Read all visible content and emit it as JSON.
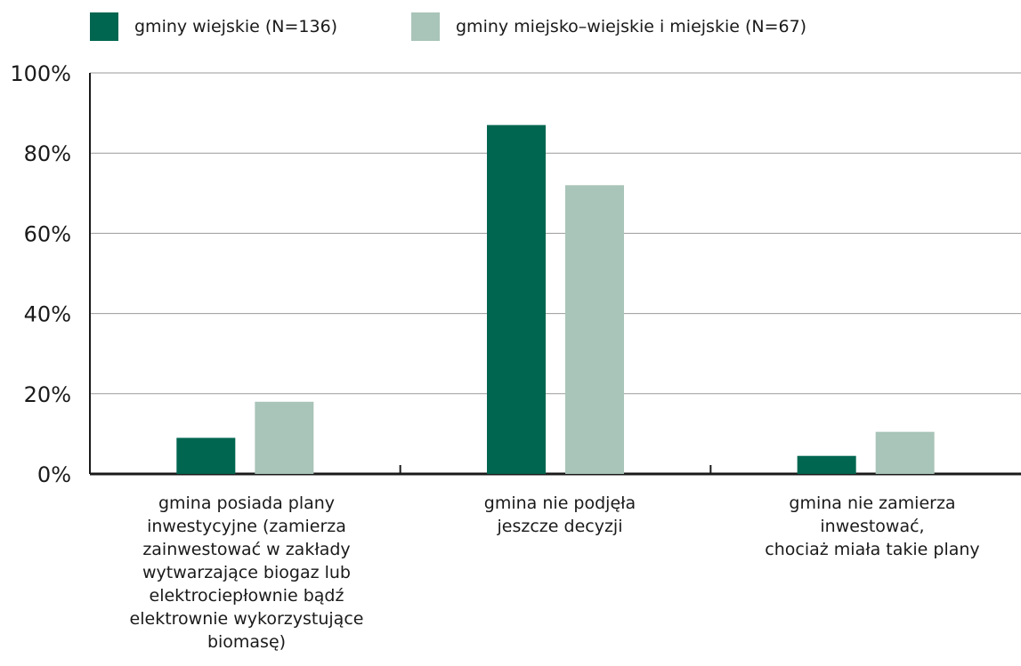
{
  "chart_data": {
    "type": "bar",
    "categories": [
      "gmina posiada plany\ninwestycyjne (zamierza\nzainwestować w zakłady\nwytwarzające biogaz lub\nelektrociepłownie bądź\nelektrownie wykorzystujące\nbiomasę)",
      "gmina nie podjęła\njeszcze decyzji",
      "gmina nie zamierza\ninwestować,\nchociaż miała takie plany"
    ],
    "series": [
      {
        "name": "gminy wiejskie (N=136)",
        "color": "#006650",
        "values": [
          9,
          87,
          4.5
        ]
      },
      {
        "name": "gminy miejsko–wiejskie i miejskie (N=67)",
        "color": "#a9c4b8",
        "values": [
          18,
          72,
          10.5
        ]
      }
    ],
    "ylim": [
      0,
      100
    ],
    "yticks": [
      "0%",
      "20%",
      "40%",
      "60%",
      "80%",
      "100%"
    ],
    "grid": true,
    "legend_position": "top-left",
    "title": "",
    "xlabel": "",
    "ylabel": ""
  }
}
